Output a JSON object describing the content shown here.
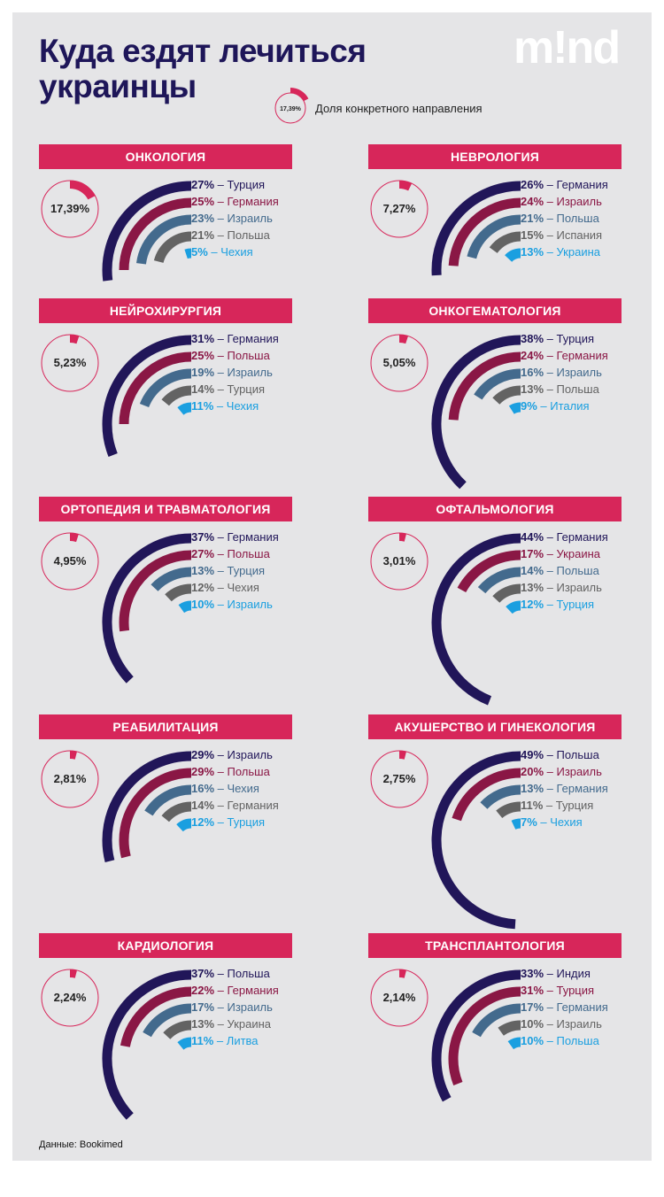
{
  "title_line1": "Куда ездят лечиться",
  "title_line2": "украинцы",
  "logo": "m!nd",
  "legend": {
    "sample_value": "17,39%",
    "sample_fraction": 0.1739,
    "text": "Доля конкретного направления"
  },
  "source": "Данные: Bookimed",
  "colors": {
    "banner": "#d7265a",
    "ring": "#d7265a",
    "series": [
      "#211659",
      "#8a1745",
      "#436a8d",
      "#636363",
      "#1a9fe0"
    ]
  },
  "chart_data": [
    {
      "type": "radial_bar",
      "title": "ОНКОЛОГИЯ",
      "share_label": "17,39%",
      "share": 0.1739,
      "items": [
        {
          "pct": "27%",
          "country": "Турция",
          "value": 27
        },
        {
          "pct": "25%",
          "country": "Германия",
          "value": 25
        },
        {
          "pct": "23%",
          "country": "Израиль",
          "value": 23
        },
        {
          "pct": "21%",
          "country": "Польша",
          "value": 21
        },
        {
          "pct": "5%",
          "country": "Чехия",
          "value": 5
        }
      ]
    },
    {
      "type": "radial_bar",
      "title": "НЕВРОЛОГИЯ",
      "share_label": "7,27%",
      "share": 0.0727,
      "items": [
        {
          "pct": "26%",
          "country": "Германия",
          "value": 26
        },
        {
          "pct": "24%",
          "country": "Израиль",
          "value": 24
        },
        {
          "pct": "21%",
          "country": "Польша",
          "value": 21
        },
        {
          "pct": "15%",
          "country": "Испания",
          "value": 15
        },
        {
          "pct": "13%",
          "country": "Украина",
          "value": 13
        }
      ]
    },
    {
      "type": "radial_bar",
      "title": "НЕЙРОХИРУРГИЯ",
      "share_label": "5,23%",
      "share": 0.0523,
      "items": [
        {
          "pct": "31%",
          "country": "Германия",
          "value": 31
        },
        {
          "pct": "25%",
          "country": "Польша",
          "value": 25
        },
        {
          "pct": "19%",
          "country": "Израиль",
          "value": 19
        },
        {
          "pct": "14%",
          "country": "Турция",
          "value": 14
        },
        {
          "pct": "11%",
          "country": "Чехия",
          "value": 11
        }
      ]
    },
    {
      "type": "radial_bar",
      "title": "ОНКОГЕМАТОЛОГИЯ",
      "share_label": "5,05%",
      "share": 0.0505,
      "items": [
        {
          "pct": "38%",
          "country": "Турция",
          "value": 38
        },
        {
          "pct": "24%",
          "country": "Германия",
          "value": 24
        },
        {
          "pct": "16%",
          "country": "Израиль",
          "value": 16
        },
        {
          "pct": "13%",
          "country": "Польша",
          "value": 13
        },
        {
          "pct": "9%",
          "country": "Италия",
          "value": 9
        }
      ]
    },
    {
      "type": "radial_bar",
      "title": "ОРТОПЕДИЯ И ТРАВМАТОЛОГИЯ",
      "share_label": "4,95%",
      "share": 0.0495,
      "items": [
        {
          "pct": "37%",
          "country": "Германия",
          "value": 37
        },
        {
          "pct": "27%",
          "country": "Польша",
          "value": 27
        },
        {
          "pct": "13%",
          "country": "Турция",
          "value": 13
        },
        {
          "pct": "12%",
          "country": "Чехия",
          "value": 12
        },
        {
          "pct": "10%",
          "country": "Израиль",
          "value": 10
        }
      ]
    },
    {
      "type": "radial_bar",
      "title": "ОФТАЛЬМОЛОГИЯ",
      "share_label": "3,01%",
      "share": 0.0301,
      "items": [
        {
          "pct": "44%",
          "country": "Германия",
          "value": 44
        },
        {
          "pct": "17%",
          "country": "Украина",
          "value": 17
        },
        {
          "pct": "14%",
          "country": "Польша",
          "value": 14
        },
        {
          "pct": "13%",
          "country": "Израиль",
          "value": 13
        },
        {
          "pct": "12%",
          "country": "Турция",
          "value": 12
        }
      ]
    },
    {
      "type": "radial_bar",
      "title": "РЕАБИЛИТАЦИЯ",
      "share_label": "2,81%",
      "share": 0.0281,
      "items": [
        {
          "pct": "29%",
          "country": "Израиль",
          "value": 29
        },
        {
          "pct": "29%",
          "country": "Польша",
          "value": 29
        },
        {
          "pct": "16%",
          "country": "Чехия",
          "value": 16
        },
        {
          "pct": "14%",
          "country": "Германия",
          "value": 14
        },
        {
          "pct": "12%",
          "country": "Турция",
          "value": 12
        }
      ]
    },
    {
      "type": "radial_bar",
      "title": "АКУШЕРСТВО И ГИНЕКОЛОГИЯ",
      "share_label": "2,75%",
      "share": 0.0275,
      "items": [
        {
          "pct": "49%",
          "country": "Польша",
          "value": 49
        },
        {
          "pct": "20%",
          "country": "Израиль",
          "value": 20
        },
        {
          "pct": "13%",
          "country": "Германия",
          "value": 13
        },
        {
          "pct": "11%",
          "country": "Турция",
          "value": 11
        },
        {
          "pct": "7%",
          "country": "Чехия",
          "value": 7
        }
      ]
    },
    {
      "type": "radial_bar",
      "title": "КАРДИОЛОГИЯ",
      "share_label": "2,24%",
      "share": 0.0224,
      "items": [
        {
          "pct": "37%",
          "country": "Польша",
          "value": 37
        },
        {
          "pct": "22%",
          "country": "Германия",
          "value": 22
        },
        {
          "pct": "17%",
          "country": "Израиль",
          "value": 17
        },
        {
          "pct": "13%",
          "country": "Украина",
          "value": 13
        },
        {
          "pct": "11%",
          "country": "Литва",
          "value": 11
        }
      ]
    },
    {
      "type": "radial_bar",
      "title": "ТРАНСПЛАНТОЛОГИЯ",
      "share_label": "2,14%",
      "share": 0.0214,
      "items": [
        {
          "pct": "33%",
          "country": "Индия",
          "value": 33
        },
        {
          "pct": "31%",
          "country": "Турция",
          "value": 31
        },
        {
          "pct": "17%",
          "country": "Германия",
          "value": 17
        },
        {
          "pct": "10%",
          "country": "Израиль",
          "value": 10
        },
        {
          "pct": "10%",
          "country": "Польша",
          "value": 10
        }
      ]
    }
  ]
}
